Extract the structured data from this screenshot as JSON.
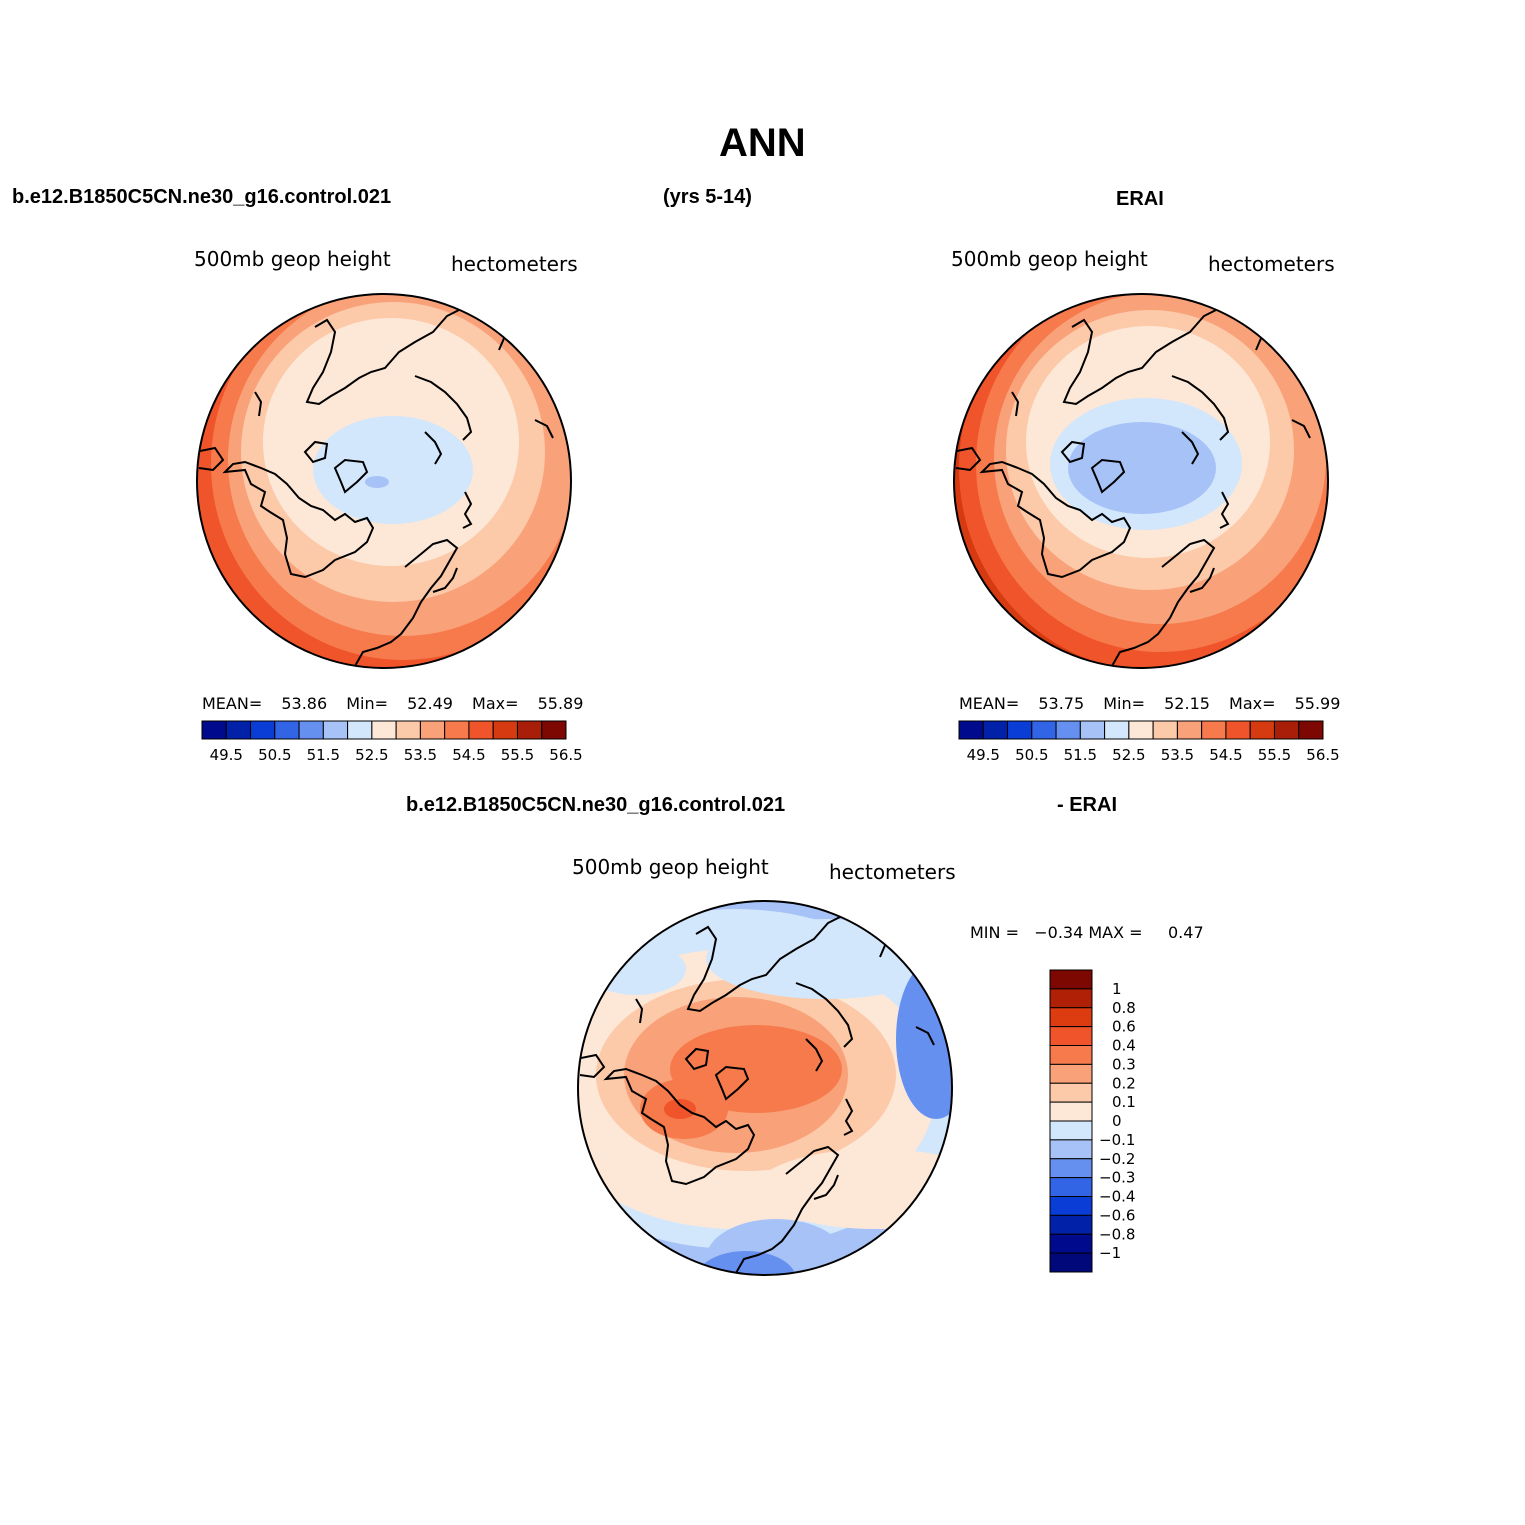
{
  "figure": {
    "title": "ANN",
    "case_name": "b.e12.B1850C5CN.ne30_g16.control.021",
    "years": "(yrs 5-14)",
    "reference": "ERAI",
    "diff_case_name": "b.e12.B1850C5CN.ne30_g16.control.021",
    "diff_reference": "- ERAI"
  },
  "panels": {
    "model": {
      "variable": "500mb geop height",
      "units": "hectometers",
      "mean_label": "MEAN=",
      "mean": "53.86",
      "min_label": "Min=",
      "min": "52.49",
      "max_label": "Max=",
      "max": "55.89"
    },
    "obs": {
      "variable": "500mb geop height",
      "units": "hectometers",
      "mean_label": "MEAN=",
      "mean": "53.75",
      "min_label": "Min=",
      "min": "52.15",
      "max_label": "Max=",
      "max": "55.99"
    },
    "diff": {
      "variable": "500mb geop height",
      "units": "hectometers",
      "minmax_text": "MIN =   −0.34 MAX =     0.47"
    }
  },
  "colorbars": {
    "abs": {
      "colors": [
        "#000a8c",
        "#0021a8",
        "#0a3cd6",
        "#3264e6",
        "#6690f0",
        "#a6c2f7",
        "#d2e6fc",
        "#fde8d8",
        "#fcc9a9",
        "#f9a27a",
        "#f67a4c",
        "#f0542a",
        "#d63a10",
        "#a81e08",
        "#7d0802"
      ],
      "tick_labels": [
        "49.5",
        "50.5",
        "51.5",
        "52.5",
        "53.5",
        "54.5",
        "55.5",
        "56.5"
      ]
    },
    "diff": {
      "colors": [
        "#7d0802",
        "#b02007",
        "#dc3c10",
        "#f0542a",
        "#f67a4c",
        "#f9a27a",
        "#fcc9a9",
        "#fde8d8",
        "#d2e6fc",
        "#a6c2f7",
        "#6690f0",
        "#3264e6",
        "#0a3cd6",
        "#0021a8",
        "#000a8c",
        "#00087a"
      ],
      "tick_labels": [
        "1",
        "0.8",
        "0.6",
        "0.4",
        "0.3",
        "0.2",
        "0.1",
        "0",
        "−0.1",
        "−0.2",
        "−0.3",
        "−0.4",
        "−0.6",
        "−0.8",
        "−1"
      ]
    }
  }
}
